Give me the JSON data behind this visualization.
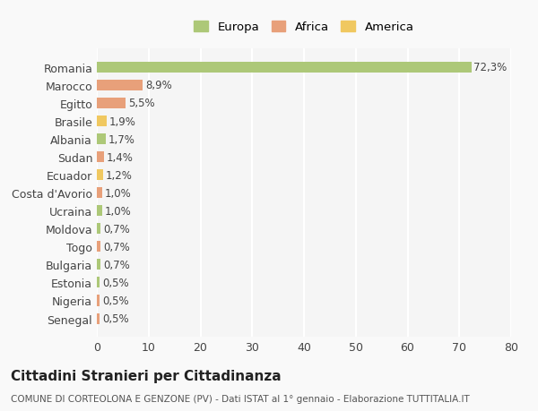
{
  "countries": [
    "Romania",
    "Marocco",
    "Egitto",
    "Brasile",
    "Albania",
    "Sudan",
    "Ecuador",
    "Costa d'Avorio",
    "Ucraina",
    "Moldova",
    "Togo",
    "Bulgaria",
    "Estonia",
    "Nigeria",
    "Senegal"
  ],
  "values": [
    72.3,
    8.9,
    5.5,
    1.9,
    1.7,
    1.4,
    1.2,
    1.0,
    1.0,
    0.7,
    0.7,
    0.7,
    0.5,
    0.5,
    0.5
  ],
  "labels": [
    "72,3%",
    "8,9%",
    "5,5%",
    "1,9%",
    "1,7%",
    "1,4%",
    "1,2%",
    "1,0%",
    "1,0%",
    "0,7%",
    "0,7%",
    "0,7%",
    "0,5%",
    "0,5%",
    "0,5%"
  ],
  "colors": [
    "#adc878",
    "#e8a07a",
    "#e8a07a",
    "#f0c860",
    "#adc878",
    "#e8a07a",
    "#f0c860",
    "#e8a07a",
    "#adc878",
    "#adc878",
    "#e8a07a",
    "#adc878",
    "#adc878",
    "#e8a07a",
    "#e8a07a"
  ],
  "legend_labels": [
    "Europa",
    "Africa",
    "America"
  ],
  "legend_colors": [
    "#adc878",
    "#e8a07a",
    "#f0c860"
  ],
  "title": "Cittadini Stranieri per Cittadinanza",
  "subtitle": "COMUNE DI CORTEOLONA E GENZONE (PV) - Dati ISTAT al 1° gennaio - Elaborazione TUTTITALIA.IT",
  "xlim": [
    0,
    80
  ],
  "xticks": [
    0,
    10,
    20,
    30,
    40,
    50,
    60,
    70,
    80
  ],
  "background_color": "#f9f9f9",
  "grid_color": "#ffffff",
  "bar_background": "#f5f5f5"
}
